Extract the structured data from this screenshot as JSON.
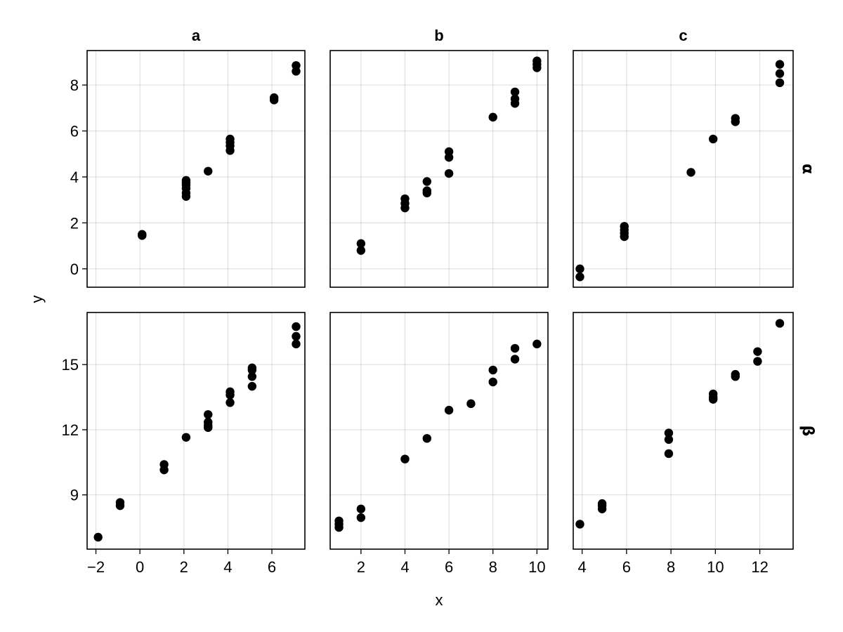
{
  "chart_data": {
    "type": "scatter",
    "xlabel": "x",
    "ylabel": "y",
    "columns": [
      "a",
      "b",
      "c"
    ],
    "rows": [
      "α",
      "β"
    ],
    "point_color": "#000000",
    "grid": true,
    "panels": [
      {
        "col": "a",
        "row": "α",
        "xlim": [
          -2.4,
          7.5
        ],
        "ylim": [
          -0.8,
          9.5
        ],
        "xticks": [
          -2,
          0,
          2,
          4,
          6
        ],
        "yticks": [
          0,
          2,
          4,
          6,
          8
        ],
        "points": [
          [
            0.1,
            1.5
          ],
          [
            0.1,
            1.45
          ],
          [
            2.1,
            3.15
          ],
          [
            2.1,
            3.3
          ],
          [
            2.1,
            3.5
          ],
          [
            2.1,
            3.65
          ],
          [
            2.1,
            3.75
          ],
          [
            2.1,
            3.85
          ],
          [
            3.1,
            4.25
          ],
          [
            4.1,
            5.15
          ],
          [
            4.1,
            5.35
          ],
          [
            4.1,
            5.5
          ],
          [
            4.1,
            5.65
          ],
          [
            6.1,
            7.35
          ],
          [
            6.1,
            7.45
          ],
          [
            7.1,
            8.6
          ],
          [
            7.1,
            8.85
          ]
        ]
      },
      {
        "col": "b",
        "row": "α",
        "xlim": [
          0.6,
          10.5
        ],
        "ylim": [
          -0.8,
          9.5
        ],
        "xticks": [
          2,
          4,
          6,
          8,
          10
        ],
        "yticks": [
          0,
          2,
          4,
          6,
          8
        ],
        "points": [
          [
            2,
            0.8
          ],
          [
            2,
            1.1
          ],
          [
            4,
            2.65
          ],
          [
            4,
            2.85
          ],
          [
            4,
            3.05
          ],
          [
            5,
            3.3
          ],
          [
            5,
            3.4
          ],
          [
            5,
            3.8
          ],
          [
            6,
            4.15
          ],
          [
            6,
            4.85
          ],
          [
            6,
            5.1
          ],
          [
            8,
            6.6
          ],
          [
            9,
            7.2
          ],
          [
            9,
            7.4
          ],
          [
            9,
            7.7
          ],
          [
            10,
            8.75
          ],
          [
            10,
            8.9
          ],
          [
            10,
            9.05
          ]
        ]
      },
      {
        "col": "c",
        "row": "α",
        "xlim": [
          3.6,
          13.5
        ],
        "ylim": [
          -0.8,
          9.5
        ],
        "xticks": [
          4,
          6,
          8,
          10,
          12
        ],
        "yticks": [
          0,
          2,
          4,
          6,
          8
        ],
        "points": [
          [
            3.9,
            0.0
          ],
          [
            3.9,
            -0.35
          ],
          [
            5.9,
            1.4
          ],
          [
            5.9,
            1.55
          ],
          [
            5.9,
            1.7
          ],
          [
            5.9,
            1.85
          ],
          [
            8.9,
            4.2
          ],
          [
            9.9,
            5.65
          ],
          [
            10.9,
            6.4
          ],
          [
            10.9,
            6.55
          ],
          [
            12.9,
            8.1
          ],
          [
            12.9,
            8.5
          ],
          [
            12.9,
            8.9
          ]
        ]
      },
      {
        "col": "a",
        "row": "β",
        "xlim": [
          -2.4,
          7.5
        ],
        "ylim": [
          6.5,
          17.4
        ],
        "xticks": [
          -2,
          0,
          2,
          4,
          6
        ],
        "yticks": [
          9,
          12,
          15
        ],
        "points": [
          [
            -1.9,
            7.05
          ],
          [
            -0.9,
            8.5
          ],
          [
            -0.9,
            8.65
          ],
          [
            1.1,
            10.15
          ],
          [
            1.1,
            10.4
          ],
          [
            2.1,
            11.65
          ],
          [
            3.1,
            12.1
          ],
          [
            3.1,
            12.2
          ],
          [
            3.1,
            12.35
          ],
          [
            3.1,
            12.7
          ],
          [
            4.1,
            13.25
          ],
          [
            4.1,
            13.6
          ],
          [
            4.1,
            13.75
          ],
          [
            5.1,
            14.0
          ],
          [
            5.1,
            14.45
          ],
          [
            5.1,
            14.75
          ],
          [
            5.1,
            14.85
          ],
          [
            7.1,
            15.95
          ],
          [
            7.1,
            16.3
          ],
          [
            7.1,
            16.75
          ]
        ]
      },
      {
        "col": "b",
        "row": "β",
        "xlim": [
          0.6,
          10.5
        ],
        "ylim": [
          6.5,
          17.4
        ],
        "xticks": [
          2,
          4,
          6,
          8,
          10
        ],
        "yticks": [
          9,
          12,
          15
        ],
        "points": [
          [
            1,
            7.5
          ],
          [
            1,
            7.65
          ],
          [
            1,
            7.8
          ],
          [
            2,
            7.95
          ],
          [
            2,
            8.35
          ],
          [
            4,
            10.65
          ],
          [
            5,
            11.6
          ],
          [
            6,
            12.9
          ],
          [
            7,
            13.2
          ],
          [
            8,
            14.2
          ],
          [
            8,
            14.75
          ],
          [
            9,
            15.25
          ],
          [
            9,
            15.75
          ],
          [
            10,
            15.95
          ]
        ]
      },
      {
        "col": "c",
        "row": "β",
        "xlim": [
          3.6,
          13.5
        ],
        "ylim": [
          6.5,
          17.4
        ],
        "xticks": [
          4,
          6,
          8,
          10,
          12
        ],
        "yticks": [
          9,
          12,
          15
        ],
        "points": [
          [
            3.9,
            7.65
          ],
          [
            4.9,
            8.35
          ],
          [
            4.9,
            8.5
          ],
          [
            4.9,
            8.6
          ],
          [
            7.9,
            10.9
          ],
          [
            7.9,
            11.55
          ],
          [
            7.9,
            11.85
          ],
          [
            9.9,
            13.4
          ],
          [
            9.9,
            13.5
          ],
          [
            9.9,
            13.65
          ],
          [
            10.9,
            14.45
          ],
          [
            10.9,
            14.55
          ],
          [
            11.9,
            15.15
          ],
          [
            11.9,
            15.6
          ],
          [
            12.9,
            16.9
          ]
        ]
      }
    ]
  }
}
